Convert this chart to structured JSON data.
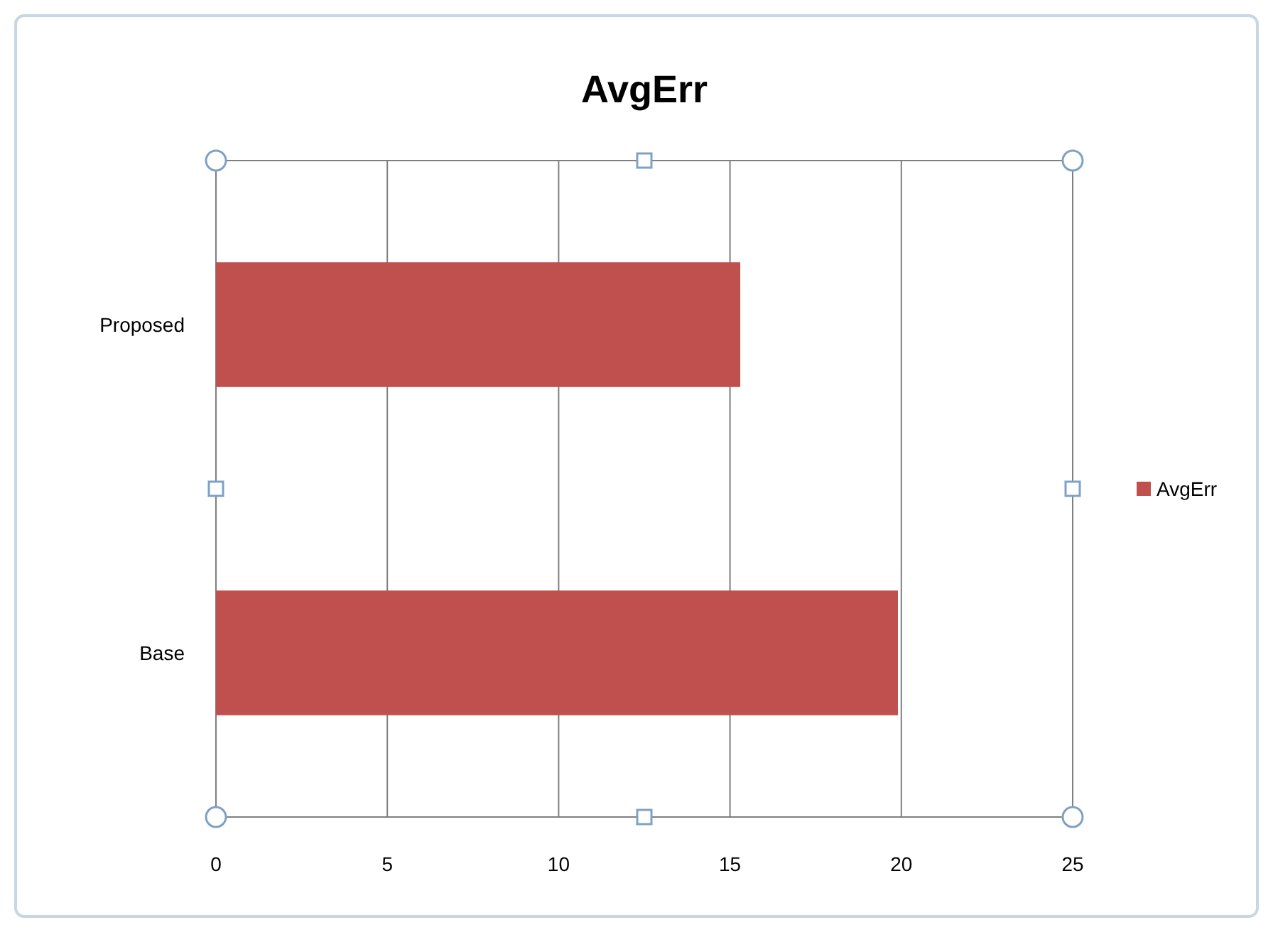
{
  "chart_data": {
    "type": "bar",
    "title": "AvgErr",
    "orientation": "horizontal",
    "categories": [
      "Proposed",
      "Base"
    ],
    "series": [
      {
        "name": "AvgErr",
        "color": "#c0504d",
        "values": [
          15.3,
          19.9
        ]
      }
    ],
    "xlim": [
      0,
      25
    ],
    "xticks": [
      0,
      5,
      10,
      15,
      20,
      25
    ],
    "grid": "x",
    "legend": "right"
  }
}
